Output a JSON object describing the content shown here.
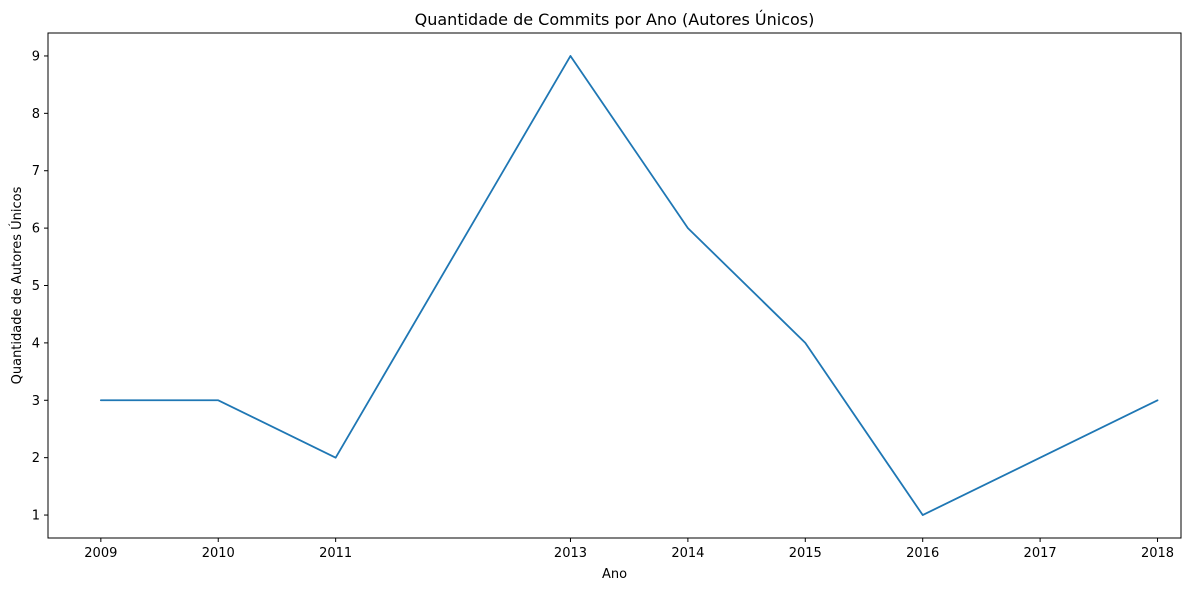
{
  "chart_data": {
    "type": "line",
    "title": "Quantidade de Commits por Ano (Autores Únicos)",
    "xlabel": "Ano",
    "ylabel": "Quantidade de Autores Únicos",
    "x": [
      2009,
      2010,
      2011,
      2013,
      2014,
      2015,
      2016,
      2017,
      2018
    ],
    "series": [
      {
        "values": [
          3,
          3,
          2,
          9,
          6,
          4,
          1,
          2,
          3
        ],
        "color": "#1f77b4"
      }
    ],
    "xticks": [
      2009,
      2010,
      2011,
      2013,
      2014,
      2015,
      2016,
      2017,
      2018
    ],
    "yticks": [
      1,
      2,
      3,
      4,
      5,
      6,
      7,
      8,
      9
    ],
    "xlim": [
      2008.55,
      2018.2
    ],
    "ylim": [
      0.6,
      9.4
    ],
    "grid": false,
    "legend": false
  }
}
